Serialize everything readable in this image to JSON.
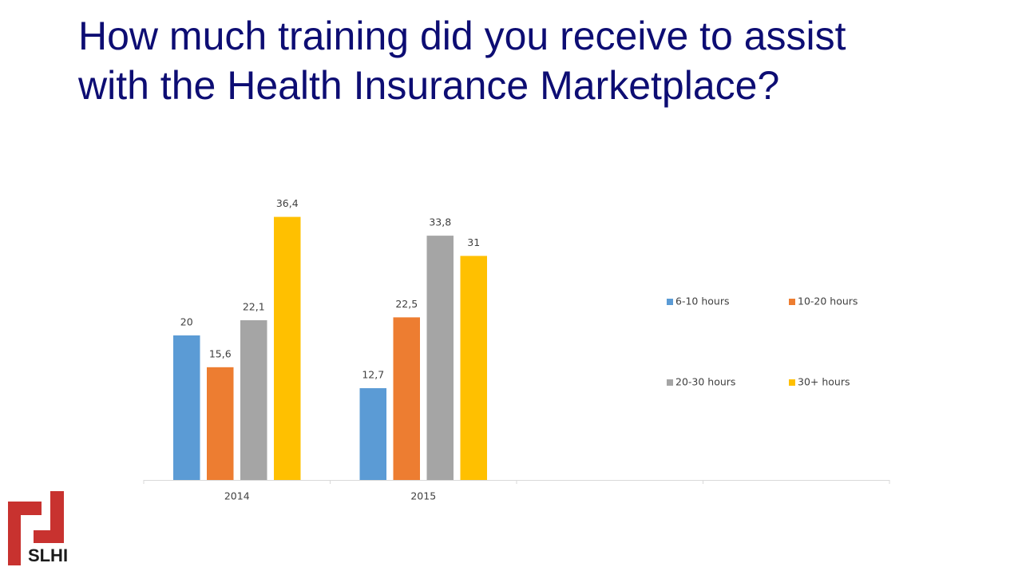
{
  "chart_data": {
    "type": "bar",
    "title": "How much training did you receive to assist with the Health Insurance Marketplace?",
    "categories": [
      "2014",
      "2015",
      null,
      null
    ],
    "series": [
      {
        "name": "6-10 hours",
        "color": "#5b9bd5",
        "values": [
          20,
          12.7,
          null,
          null
        ],
        "value_labels": [
          "20",
          "12,7",
          null,
          null
        ]
      },
      {
        "name": "10-20 hours",
        "color": "#ed7d31",
        "values": [
          15.6,
          22.5,
          null,
          null
        ],
        "value_labels": [
          "15,6",
          "22,5",
          null,
          null
        ]
      },
      {
        "name": "20-30 hours",
        "color": "#a5a5a5",
        "values": [
          22.1,
          33.8,
          null,
          null
        ],
        "value_labels": [
          "22,1",
          "33,8",
          null,
          null
        ]
      },
      {
        "name": "30+ hours",
        "color": "#ffc000",
        "values": [
          36.4,
          31,
          null,
          null
        ],
        "value_labels": [
          "36,4",
          "31",
          null,
          null
        ]
      }
    ],
    "ylim": [
      0,
      40
    ],
    "legend": "right",
    "logo": "SLHI"
  }
}
